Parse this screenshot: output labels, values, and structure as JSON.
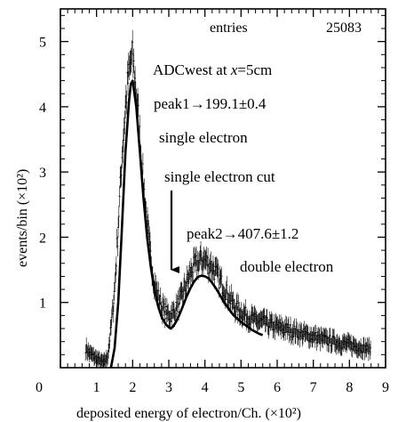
{
  "chart_data": {
    "type": "scatter",
    "xlabel": "deposited energy of electron/Ch.  (×10²)",
    "ylabel": "events/bin  (×10²)",
    "xlim": [
      0,
      9
    ],
    "ylim": [
      0,
      5.5
    ],
    "x_ticks": [
      0,
      1,
      2,
      3,
      4,
      5,
      6,
      7,
      8,
      9
    ],
    "x_tick_labels": [
      "0",
      "1",
      "2",
      "3",
      "4",
      "5",
      "6",
      "7",
      "8",
      "9"
    ],
    "y_ticks": [
      1,
      2,
      3,
      4,
      5
    ],
    "y_tick_labels": [
      "1",
      "2",
      "3",
      "4",
      "5"
    ],
    "grid": false,
    "series": [
      {
        "style": "histogram-errorbars",
        "x": [
          0.7,
          0.8,
          0.9,
          1.0,
          1.1,
          1.2,
          1.3,
          1.4,
          1.5,
          1.6,
          1.7,
          1.8,
          1.85,
          1.9,
          1.95,
          2.0,
          2.05,
          2.1,
          2.15,
          2.2,
          2.3,
          2.4,
          2.5,
          2.6,
          2.7,
          2.8,
          2.9,
          3.0,
          3.1,
          3.2,
          3.3,
          3.4,
          3.5,
          3.6,
          3.7,
          3.8,
          3.9,
          4.0,
          4.1,
          4.2,
          4.3,
          4.4,
          4.5,
          4.6,
          4.7,
          4.8,
          4.9,
          5.0,
          5.2,
          5.4,
          5.6,
          5.8,
          6.0,
          6.2,
          6.4,
          6.6,
          6.8,
          7.0,
          7.2,
          7.4,
          7.6,
          7.8,
          8.0,
          8.2,
          8.4,
          8.6
        ],
        "y": [
          0.3,
          0.22,
          0.18,
          0.14,
          0.1,
          0.08,
          0.15,
          0.6,
          1.2,
          2.2,
          3.2,
          4.0,
          4.3,
          4.5,
          4.7,
          4.75,
          4.5,
          4.2,
          3.9,
          3.5,
          2.8,
          2.2,
          1.7,
          1.3,
          1.1,
          0.95,
          0.85,
          0.8,
          0.82,
          0.9,
          1.0,
          1.15,
          1.3,
          1.45,
          1.55,
          1.6,
          1.65,
          1.65,
          1.6,
          1.55,
          1.45,
          1.35,
          1.25,
          1.15,
          1.05,
          0.95,
          0.9,
          0.85,
          0.78,
          0.72,
          0.7,
          0.65,
          0.62,
          0.6,
          0.57,
          0.53,
          0.5,
          0.48,
          0.44,
          0.42,
          0.4,
          0.37,
          0.35,
          0.33,
          0.3,
          0.28
        ],
        "error": 0.13
      },
      {
        "style": "fit-curve",
        "x": [
          1.4,
          1.5,
          1.6,
          1.7,
          1.8,
          1.9,
          1.95,
          2.0,
          2.1,
          2.2,
          2.3,
          2.4,
          2.5,
          2.6,
          2.7,
          2.8,
          2.9,
          3.0,
          3.05,
          3.1,
          3.2,
          3.3,
          3.4,
          3.5,
          3.6,
          3.7,
          3.8,
          3.9,
          4.0,
          4.1,
          4.2,
          4.3,
          4.4,
          4.5,
          4.6,
          4.7,
          4.8,
          4.9,
          5.0,
          5.1,
          5.2,
          5.3,
          5.4,
          5.5,
          5.6
        ],
        "y": [
          0.0,
          0.3,
          1.0,
          2.1,
          3.3,
          4.1,
          4.35,
          4.4,
          4.0,
          3.3,
          2.6,
          2.0,
          1.55,
          1.2,
          0.95,
          0.78,
          0.68,
          0.62,
          0.6,
          0.62,
          0.7,
          0.82,
          0.96,
          1.1,
          1.22,
          1.32,
          1.39,
          1.41,
          1.4,
          1.37,
          1.3,
          1.22,
          1.13,
          1.03,
          0.95,
          0.87,
          0.8,
          0.75,
          0.7,
          0.66,
          0.62,
          0.58,
          0.55,
          0.52,
          0.5
        ]
      }
    ],
    "annotations": {
      "entries_label": "entries",
      "entries_value": "25083",
      "adc_label_prefix": "ADCwest at ",
      "adc_label_var": "x",
      "adc_label_suffix": "=5cm",
      "peak1": "peak1→199.1±0.4",
      "single_electron": "single electron",
      "cut_label": "single electron cut",
      "cut_arrow_at_x": 3.0,
      "peak2": "peak2→407.6±1.2",
      "double_electron": "double electron"
    },
    "colors": {
      "ink": "#000000",
      "background": "#ffffff"
    }
  }
}
